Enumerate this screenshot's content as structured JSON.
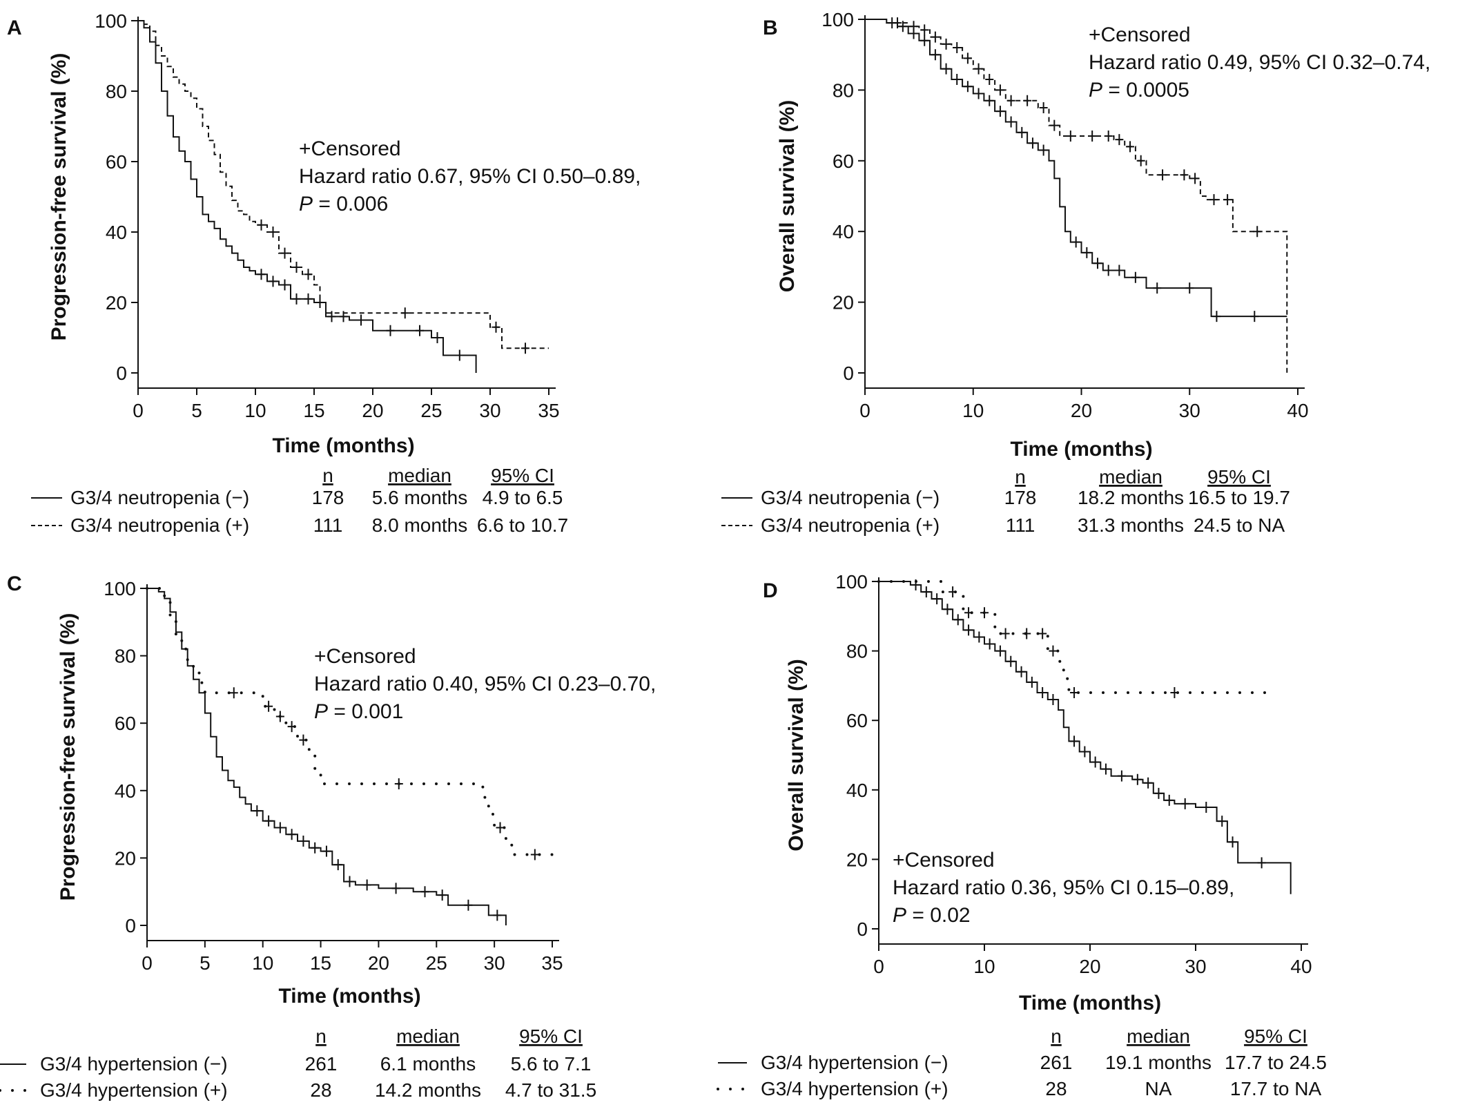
{
  "chart_data": [
    {
      "panel": "A",
      "type": "line",
      "ylabel": "Progression-free survival (%)",
      "xlabel": "Time (months)",
      "xlim": [
        0,
        35
      ],
      "ylim": [
        0,
        100
      ],
      "xticks": [
        "0",
        "5",
        "10",
        "15",
        "20",
        "25",
        "30",
        "35"
      ],
      "yticks": [
        "0",
        "20",
        "40",
        "60",
        "80",
        "100"
      ],
      "annotation": {
        "censored": "+Censored",
        "hr": "Hazard ratio 0.67, 95% CI 0.50–0.89,",
        "p_prefix": "P",
        "p_value": " = 0.006"
      },
      "legend": {
        "headers": [
          "n",
          "median",
          "95% CI"
        ],
        "rows": [
          {
            "label": "G3/4 neutropenia (−)",
            "n": "178",
            "median": "5.6 months",
            "ci": "4.9 to 6.5"
          },
          {
            "label": "G3/4 neutropenia (+)",
            "n": "111",
            "median": "8.0 months",
            "ci": "6.6 to 10.7"
          }
        ]
      },
      "series": [
        {
          "style": "solid",
          "x": [
            0,
            0.5,
            1,
            1.5,
            2,
            2.5,
            3,
            3.5,
            4,
            4.5,
            5,
            5.5,
            6,
            6.5,
            7,
            7.5,
            8,
            8.5,
            9,
            9.5,
            10,
            11,
            12,
            13,
            14,
            15,
            16,
            17,
            18,
            20,
            23,
            25,
            26,
            28.8
          ],
          "y": [
            100,
            98,
            94,
            88,
            80,
            73,
            67,
            63,
            60,
            55,
            50,
            45,
            43,
            41,
            38,
            36,
            34,
            32,
            30,
            29,
            28,
            26,
            25,
            21,
            21,
            20,
            16,
            16,
            15,
            12,
            12,
            10,
            5,
            0
          ]
        },
        {
          "style": "dashed",
          "x": [
            0,
            0.5,
            1,
            1.5,
            2,
            2.5,
            3,
            3.5,
            4,
            4.5,
            5,
            5.5,
            6,
            6.5,
            7,
            7.5,
            8,
            8.5,
            9,
            9.5,
            10,
            11,
            12,
            13,
            14,
            15,
            15.5,
            16,
            29.5,
            30,
            31,
            35
          ],
          "y": [
            100,
            99,
            97,
            93,
            90,
            87,
            84,
            82,
            80,
            78,
            75,
            70,
            66,
            62,
            57,
            53,
            49,
            46,
            45,
            43,
            42,
            40,
            34,
            30,
            28,
            25,
            20,
            17,
            17,
            13,
            7,
            7
          ]
        }
      ]
    },
    {
      "panel": "B",
      "type": "line",
      "ylabel": "Overall survival (%)",
      "xlabel": "Time (months)",
      "xlim": [
        0,
        40
      ],
      "ylim": [
        0,
        100
      ],
      "xticks": [
        "0",
        "10",
        "20",
        "30",
        "40"
      ],
      "yticks": [
        "0",
        "20",
        "40",
        "60",
        "80",
        "100"
      ],
      "annotation": {
        "censored": "+Censored",
        "hr": "Hazard ratio 0.49, 95% CI 0.32–0.74,",
        "p_prefix": "P",
        "p_value": " = 0.0005"
      },
      "legend": {
        "headers": [
          "n",
          "median",
          "95% CI"
        ],
        "rows": [
          {
            "label": "G3/4 neutropenia (−)",
            "n": "178",
            "median": "18.2 months",
            "ci": "16.5 to 19.7"
          },
          {
            "label": "G3/4 neutropenia (+)",
            "n": "111",
            "median": "31.3 months",
            "ci": "24.5 to NA"
          }
        ]
      },
      "series": [
        {
          "style": "solid",
          "x": [
            0,
            2,
            3,
            4,
            5,
            6,
            7,
            8,
            9,
            10,
            11,
            12,
            13,
            14,
            15,
            16,
            17,
            17.5,
            18,
            18.5,
            19,
            20,
            21,
            22,
            23,
            24,
            26,
            28,
            32,
            33,
            39
          ],
          "y": [
            100,
            99,
            98,
            96,
            94,
            90,
            86,
            83,
            81,
            79,
            77,
            74,
            71,
            68,
            65,
            63,
            60,
            55,
            47,
            40,
            37,
            34,
            31,
            29,
            29,
            27,
            24,
            24,
            16,
            16,
            16
          ]
        },
        {
          "style": "dashed",
          "x": [
            0,
            2,
            4,
            5,
            6,
            7,
            8,
            9,
            10,
            11,
            12,
            13,
            14,
            16,
            17,
            18,
            20,
            22,
            23,
            24,
            25,
            26,
            29,
            30,
            31,
            31.5,
            33,
            34,
            38.5,
            39
          ],
          "y": [
            100,
            99,
            98,
            97,
            95,
            93,
            92,
            89,
            86,
            83,
            80,
            77,
            77,
            75,
            70,
            67,
            67,
            67,
            66,
            64,
            60,
            56,
            56,
            55,
            50,
            49,
            49,
            40,
            40,
            0
          ]
        }
      ]
    },
    {
      "panel": "C",
      "type": "line",
      "ylabel": "Progression-free survival (%)",
      "xlabel": "Time (months)",
      "xlim": [
        0,
        35
      ],
      "ylim": [
        0,
        100
      ],
      "xticks": [
        "0",
        "5",
        "10",
        "15",
        "20",
        "25",
        "30",
        "35"
      ],
      "yticks": [
        "0",
        "20",
        "40",
        "60",
        "80",
        "100"
      ],
      "annotation": {
        "censored": "+Censored",
        "hr": "Hazard ratio 0.40, 95% CI 0.23–0.70,",
        "p_prefix": "P",
        "p_value": " = 0.001"
      },
      "legend": {
        "headers": [
          "n",
          "median",
          "95% CI"
        ],
        "rows": [
          {
            "label": "G3/4 hypertension (−)",
            "n": "261",
            "median": "6.1 months",
            "ci": "5.6 to 7.1"
          },
          {
            "label": "G3/4 hypertension (+)",
            "n": "28",
            "median": "14.2 months",
            "ci": "4.7 to 31.5"
          }
        ]
      },
      "series": [
        {
          "style": "solid",
          "x": [
            0,
            1,
            1.5,
            2,
            2.5,
            3,
            3.5,
            4,
            4.5,
            5,
            5.5,
            6,
            6.5,
            7,
            7.5,
            8,
            8.5,
            9,
            10,
            11,
            12,
            13,
            14,
            15,
            16,
            17,
            18,
            20,
            23,
            25,
            26,
            29.5,
            31
          ],
          "y": [
            100,
            99,
            97,
            93,
            87,
            82,
            77,
            73,
            69,
            63,
            56,
            50,
            46,
            43,
            41,
            38,
            36,
            34,
            31,
            29,
            27,
            25,
            23,
            22,
            18,
            13,
            12,
            11,
            10,
            9,
            6,
            3,
            0
          ]
        },
        {
          "style": "dotted",
          "x": [
            0,
            1.5,
            2,
            2.5,
            3,
            3.5,
            4,
            4.5,
            5,
            10,
            11,
            12,
            13,
            14,
            14.5,
            15,
            28.5,
            29,
            29.5,
            30,
            31,
            31.5,
            32,
            35
          ],
          "y": [
            100,
            96,
            92,
            86,
            82,
            78,
            75,
            72,
            69,
            65,
            62,
            59,
            55,
            52,
            46,
            42,
            42,
            38,
            33,
            29,
            25,
            21,
            21,
            21
          ]
        }
      ]
    },
    {
      "panel": "D",
      "type": "line",
      "ylabel": "Overall survival (%)",
      "xlabel": "Time (months)",
      "xlim": [
        0,
        40
      ],
      "ylim": [
        0,
        100
      ],
      "xticks": [
        "0",
        "10",
        "20",
        "30",
        "40"
      ],
      "yticks": [
        "0",
        "20",
        "40",
        "60",
        "80",
        "100"
      ],
      "annotation": {
        "censored": "+Censored",
        "hr": "Hazard ratio 0.36, 95% CI 0.15–0.89,",
        "p_prefix": "P",
        "p_value": " = 0.02"
      },
      "legend": {
        "headers": [
          "n",
          "median",
          "95% CI"
        ],
        "rows": [
          {
            "label": "G3/4 hypertension (−)",
            "n": "261",
            "median": "19.1 months",
            "ci": "17.7 to 24.5"
          },
          {
            "label": "G3/4 hypertension (+)",
            "n": "28",
            "median": "NA",
            "ci": "17.7 to NA"
          }
        ]
      },
      "series": [
        {
          "style": "solid",
          "x": [
            0,
            3,
            4,
            5,
            6,
            7,
            8,
            9,
            10,
            11,
            12,
            13,
            14,
            15,
            16,
            17,
            17.5,
            18,
            19,
            20,
            21,
            22,
            24,
            25,
            26,
            27,
            28,
            30,
            32,
            33,
            34,
            38.5,
            39
          ],
          "y": [
            100,
            99,
            97,
            95,
            92,
            89,
            86,
            84,
            82,
            80,
            77,
            74,
            71,
            68,
            66,
            63,
            58,
            54,
            51,
            48,
            46,
            44,
            43,
            42,
            39,
            37,
            36,
            35,
            31,
            25,
            19,
            19,
            10
          ]
        },
        {
          "style": "dotted",
          "x": [
            0,
            6,
            8,
            9,
            11,
            13,
            15,
            16,
            17,
            17.5,
            18,
            19,
            37
          ],
          "y": [
            100,
            97,
            91,
            91,
            85,
            85,
            85,
            80,
            77,
            72,
            68,
            68,
            68
          ]
        }
      ]
    }
  ]
}
